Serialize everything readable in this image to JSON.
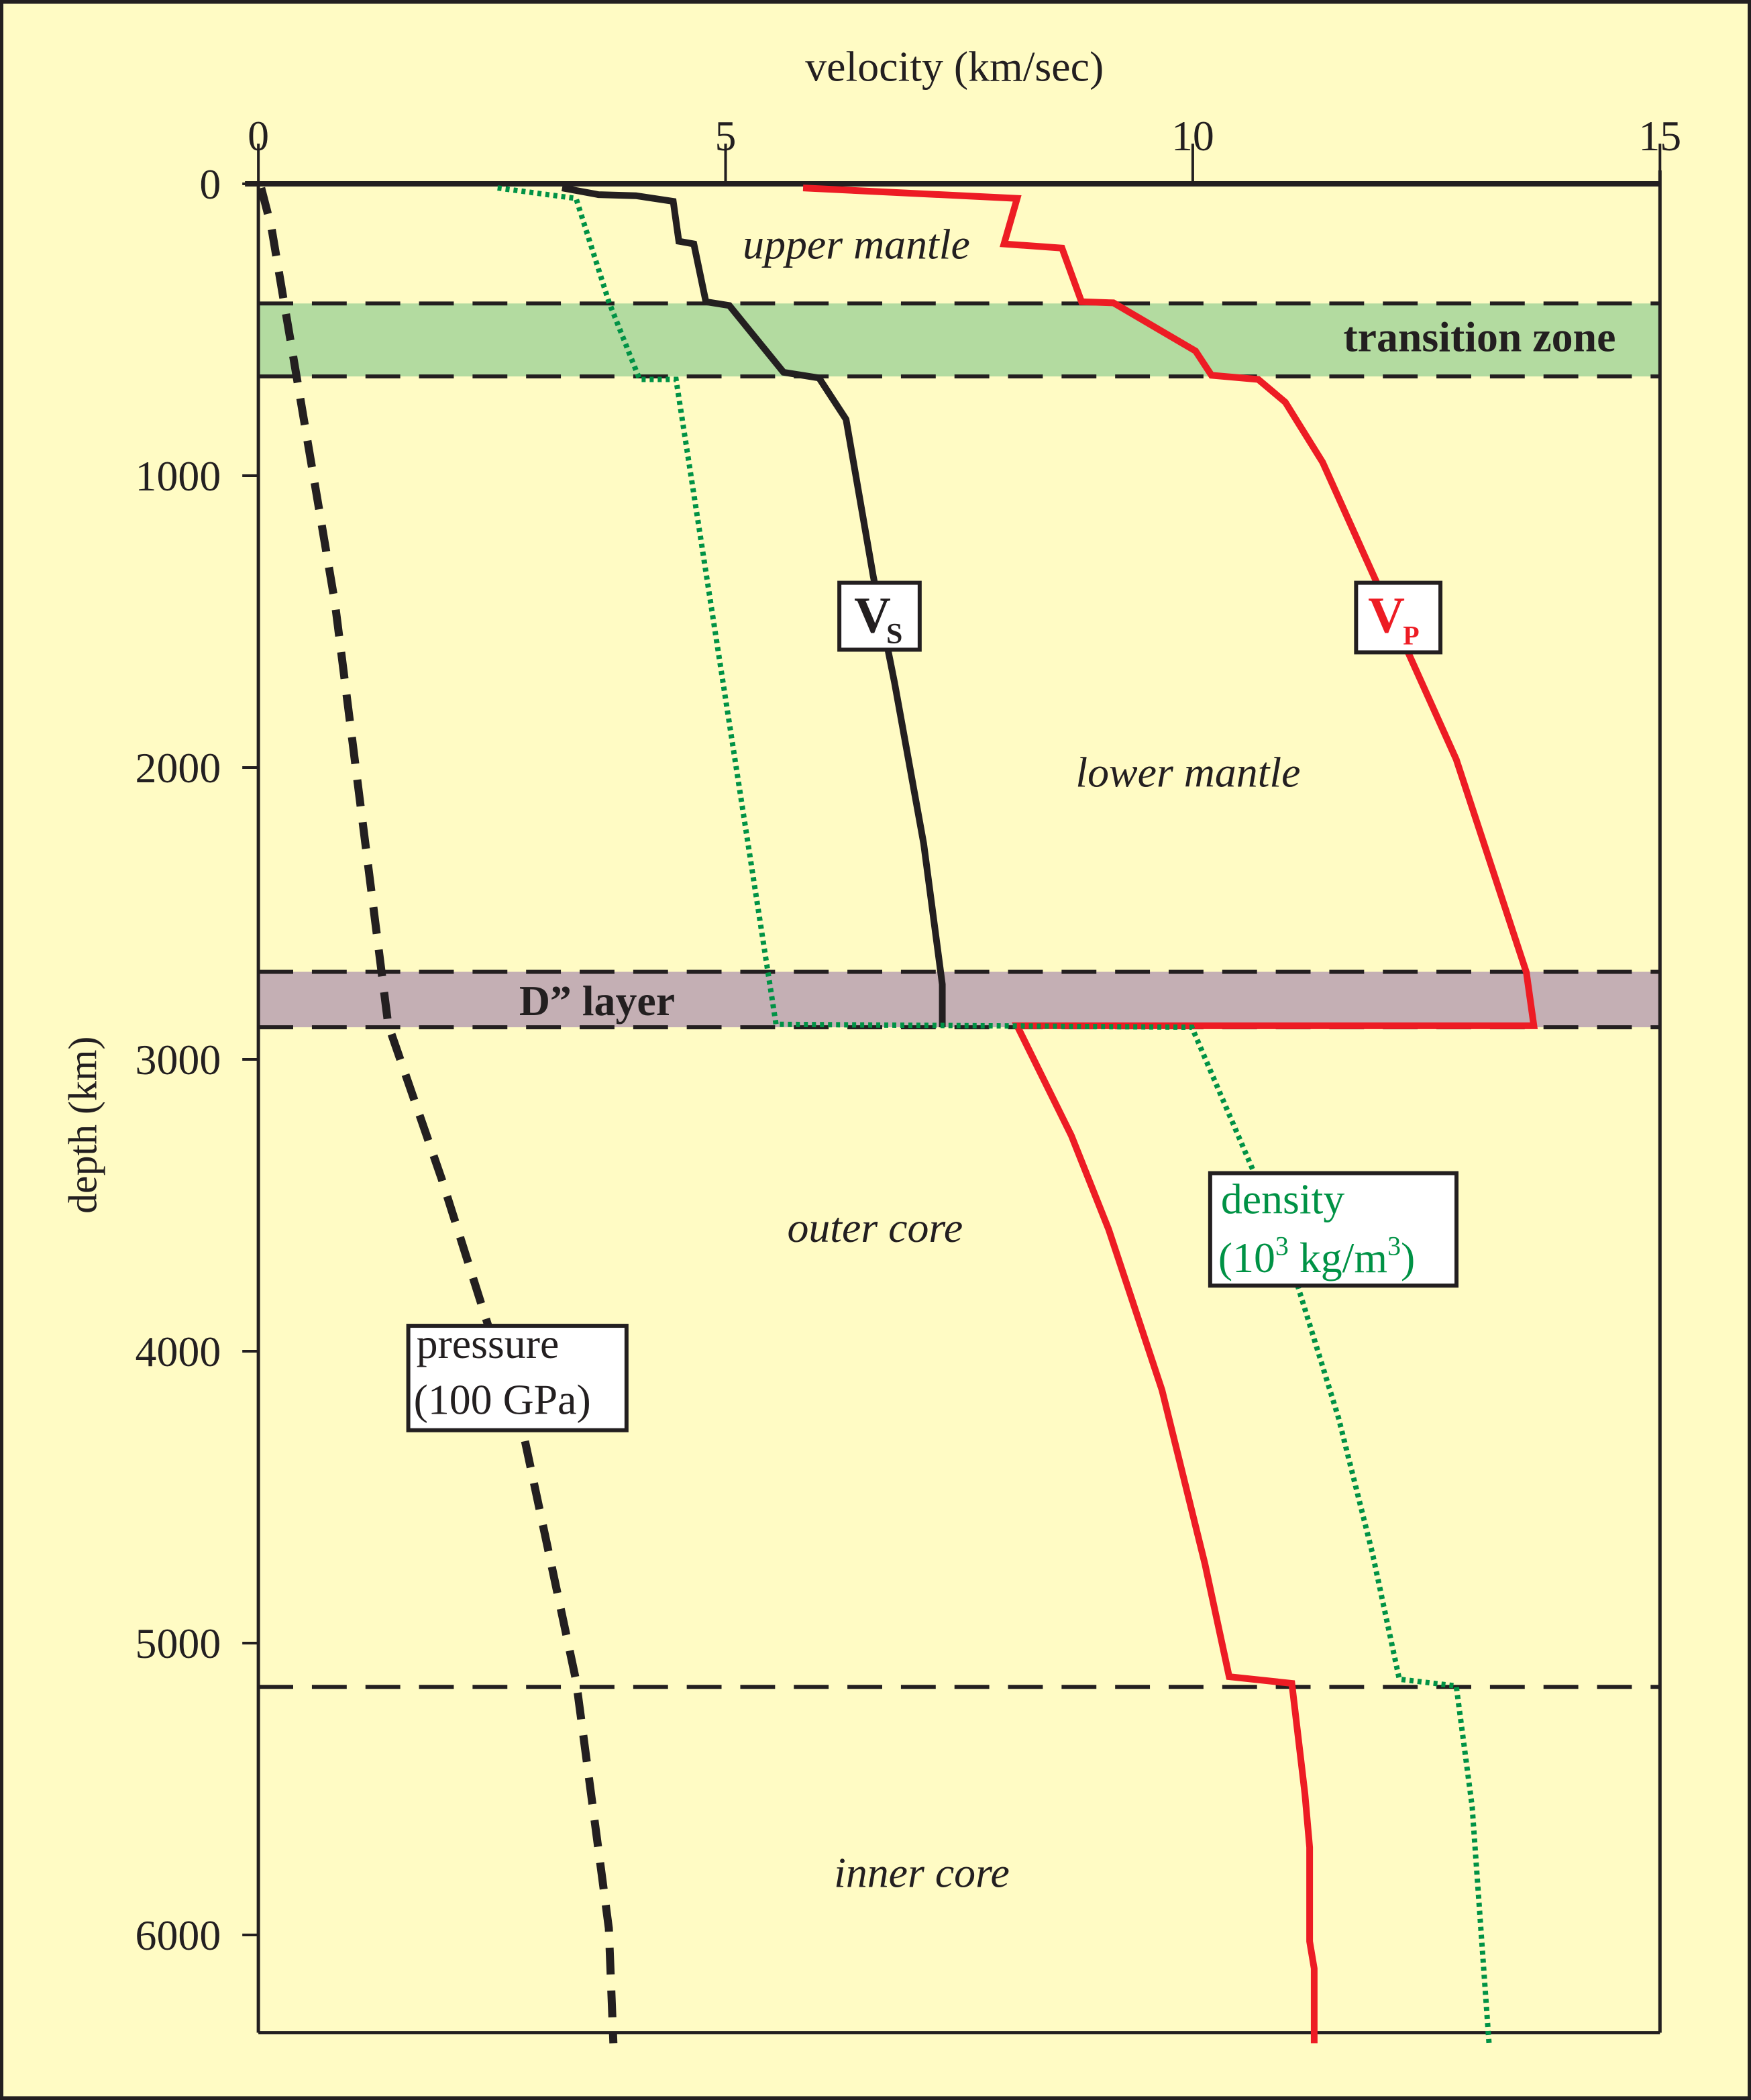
{
  "chart_data": {
    "type": "line",
    "title": "",
    "xlabel": "velocity (km/sec)",
    "ylabel": "depth (km)",
    "xlim": [
      0,
      15
    ],
    "ylim": [
      0,
      6371
    ],
    "x_ticks": [
      "0",
      "5",
      "10",
      "15"
    ],
    "y_ticks": [
      "0",
      "1000",
      "2000",
      "3000",
      "4000",
      "5000",
      "6000"
    ],
    "x_axis_position": "top",
    "y_inverted": true,
    "grid": false,
    "colors": {
      "background": "#FFFBC4",
      "vp": "#ED1C24",
      "vs": "#231F20",
      "density": "#009245",
      "pressure": "#231F20",
      "transition_zone": "#B3DBA0",
      "d_layer": "#C4AFB4"
    },
    "series": [
      {
        "key": "vp",
        "label_main": "V",
        "label_sub": "P",
        "style": "solid",
        "points": [
          [
            5.83,
            14
          ],
          [
            8.12,
            50
          ],
          [
            7.98,
            206
          ],
          [
            8.6,
            220
          ],
          [
            8.81,
            404
          ],
          [
            9.15,
            408
          ],
          [
            10.03,
            573
          ],
          [
            10.2,
            656
          ],
          [
            10.7,
            670
          ],
          [
            10.99,
            748
          ],
          [
            11.39,
            954
          ],
          [
            12.82,
            1972
          ],
          [
            13.57,
            2702
          ],
          [
            13.65,
            2885
          ],
          [
            8.12,
            2885
          ],
          [
            8.7,
            3261
          ],
          [
            9.1,
            3583
          ],
          [
            9.67,
            4133
          ],
          [
            10.13,
            4729
          ],
          [
            10.39,
            5115
          ],
          [
            11.06,
            5138
          ],
          [
            11.2,
            5518
          ],
          [
            11.25,
            5700
          ],
          [
            11.25,
            6022
          ],
          [
            11.3,
            6115
          ],
          [
            11.3,
            6371
          ]
        ]
      },
      {
        "key": "vs",
        "label_main": "V",
        "label_sub": "S",
        "style": "solid",
        "points": [
          [
            3.25,
            14
          ],
          [
            3.64,
            37
          ],
          [
            4.04,
            41
          ],
          [
            4.44,
            60
          ],
          [
            4.5,
            197
          ],
          [
            4.66,
            206
          ],
          [
            4.79,
            404
          ],
          [
            5.04,
            417
          ],
          [
            5.62,
            646
          ],
          [
            6.0,
            665
          ],
          [
            6.29,
            807
          ],
          [
            6.58,
            1344
          ],
          [
            6.81,
            1711
          ],
          [
            7.12,
            2261
          ],
          [
            7.32,
            2743
          ],
          [
            7.32,
            2890
          ]
        ]
      },
      {
        "key": "density",
        "label_line1": "density",
        "label_line2_pre": "(10",
        "label_line2_sup1": "3",
        "label_line2_mid": " kg/m",
        "label_line2_sup2": "3",
        "label_line2_post": ")",
        "style": "dotted",
        "points": [
          [
            2.56,
            14
          ],
          [
            3.4,
            50
          ],
          [
            3.75,
            404
          ],
          [
            4.08,
            670
          ],
          [
            4.47,
            670
          ],
          [
            5.54,
            2880
          ],
          [
            9.99,
            2890
          ],
          [
            10.99,
            3638
          ],
          [
            11.56,
            4229
          ],
          [
            11.92,
            4688
          ],
          [
            12.21,
            5124
          ],
          [
            12.82,
            5147
          ],
          [
            12.99,
            5560
          ],
          [
            13.17,
            6371
          ]
        ]
      },
      {
        "key": "pressure",
        "label_line1": "pressure",
        "label_line2": "(100 GPa)",
        "style": "dashed",
        "points": [
          [
            0.03,
            14
          ],
          [
            0.14,
            151
          ],
          [
            0.31,
            472
          ],
          [
            0.82,
            1436
          ],
          [
            1.39,
            2881
          ],
          [
            1.96,
            3408
          ],
          [
            2.46,
            3913
          ],
          [
            2.82,
            4257
          ],
          [
            3.4,
            5128
          ],
          [
            3.75,
            5977
          ],
          [
            3.8,
            6371
          ]
        ]
      }
    ],
    "boundaries_km": [
      410,
      660,
      2700,
      2890,
      5150
    ],
    "bands": [
      {
        "label": "transition zone",
        "from": 410,
        "to": 660
      },
      {
        "label": "D” layer",
        "from": 2700,
        "to": 2890
      }
    ],
    "region_labels": [
      {
        "label": "upper mantle",
        "v": 6.4,
        "depth": 210
      },
      {
        "label": "lower mantle",
        "v": 9.95,
        "depth": 2020
      },
      {
        "label": "outer core",
        "v": 6.6,
        "depth": 3580
      },
      {
        "label": "inner core",
        "v": 7.1,
        "depth": 5790
      }
    ]
  }
}
